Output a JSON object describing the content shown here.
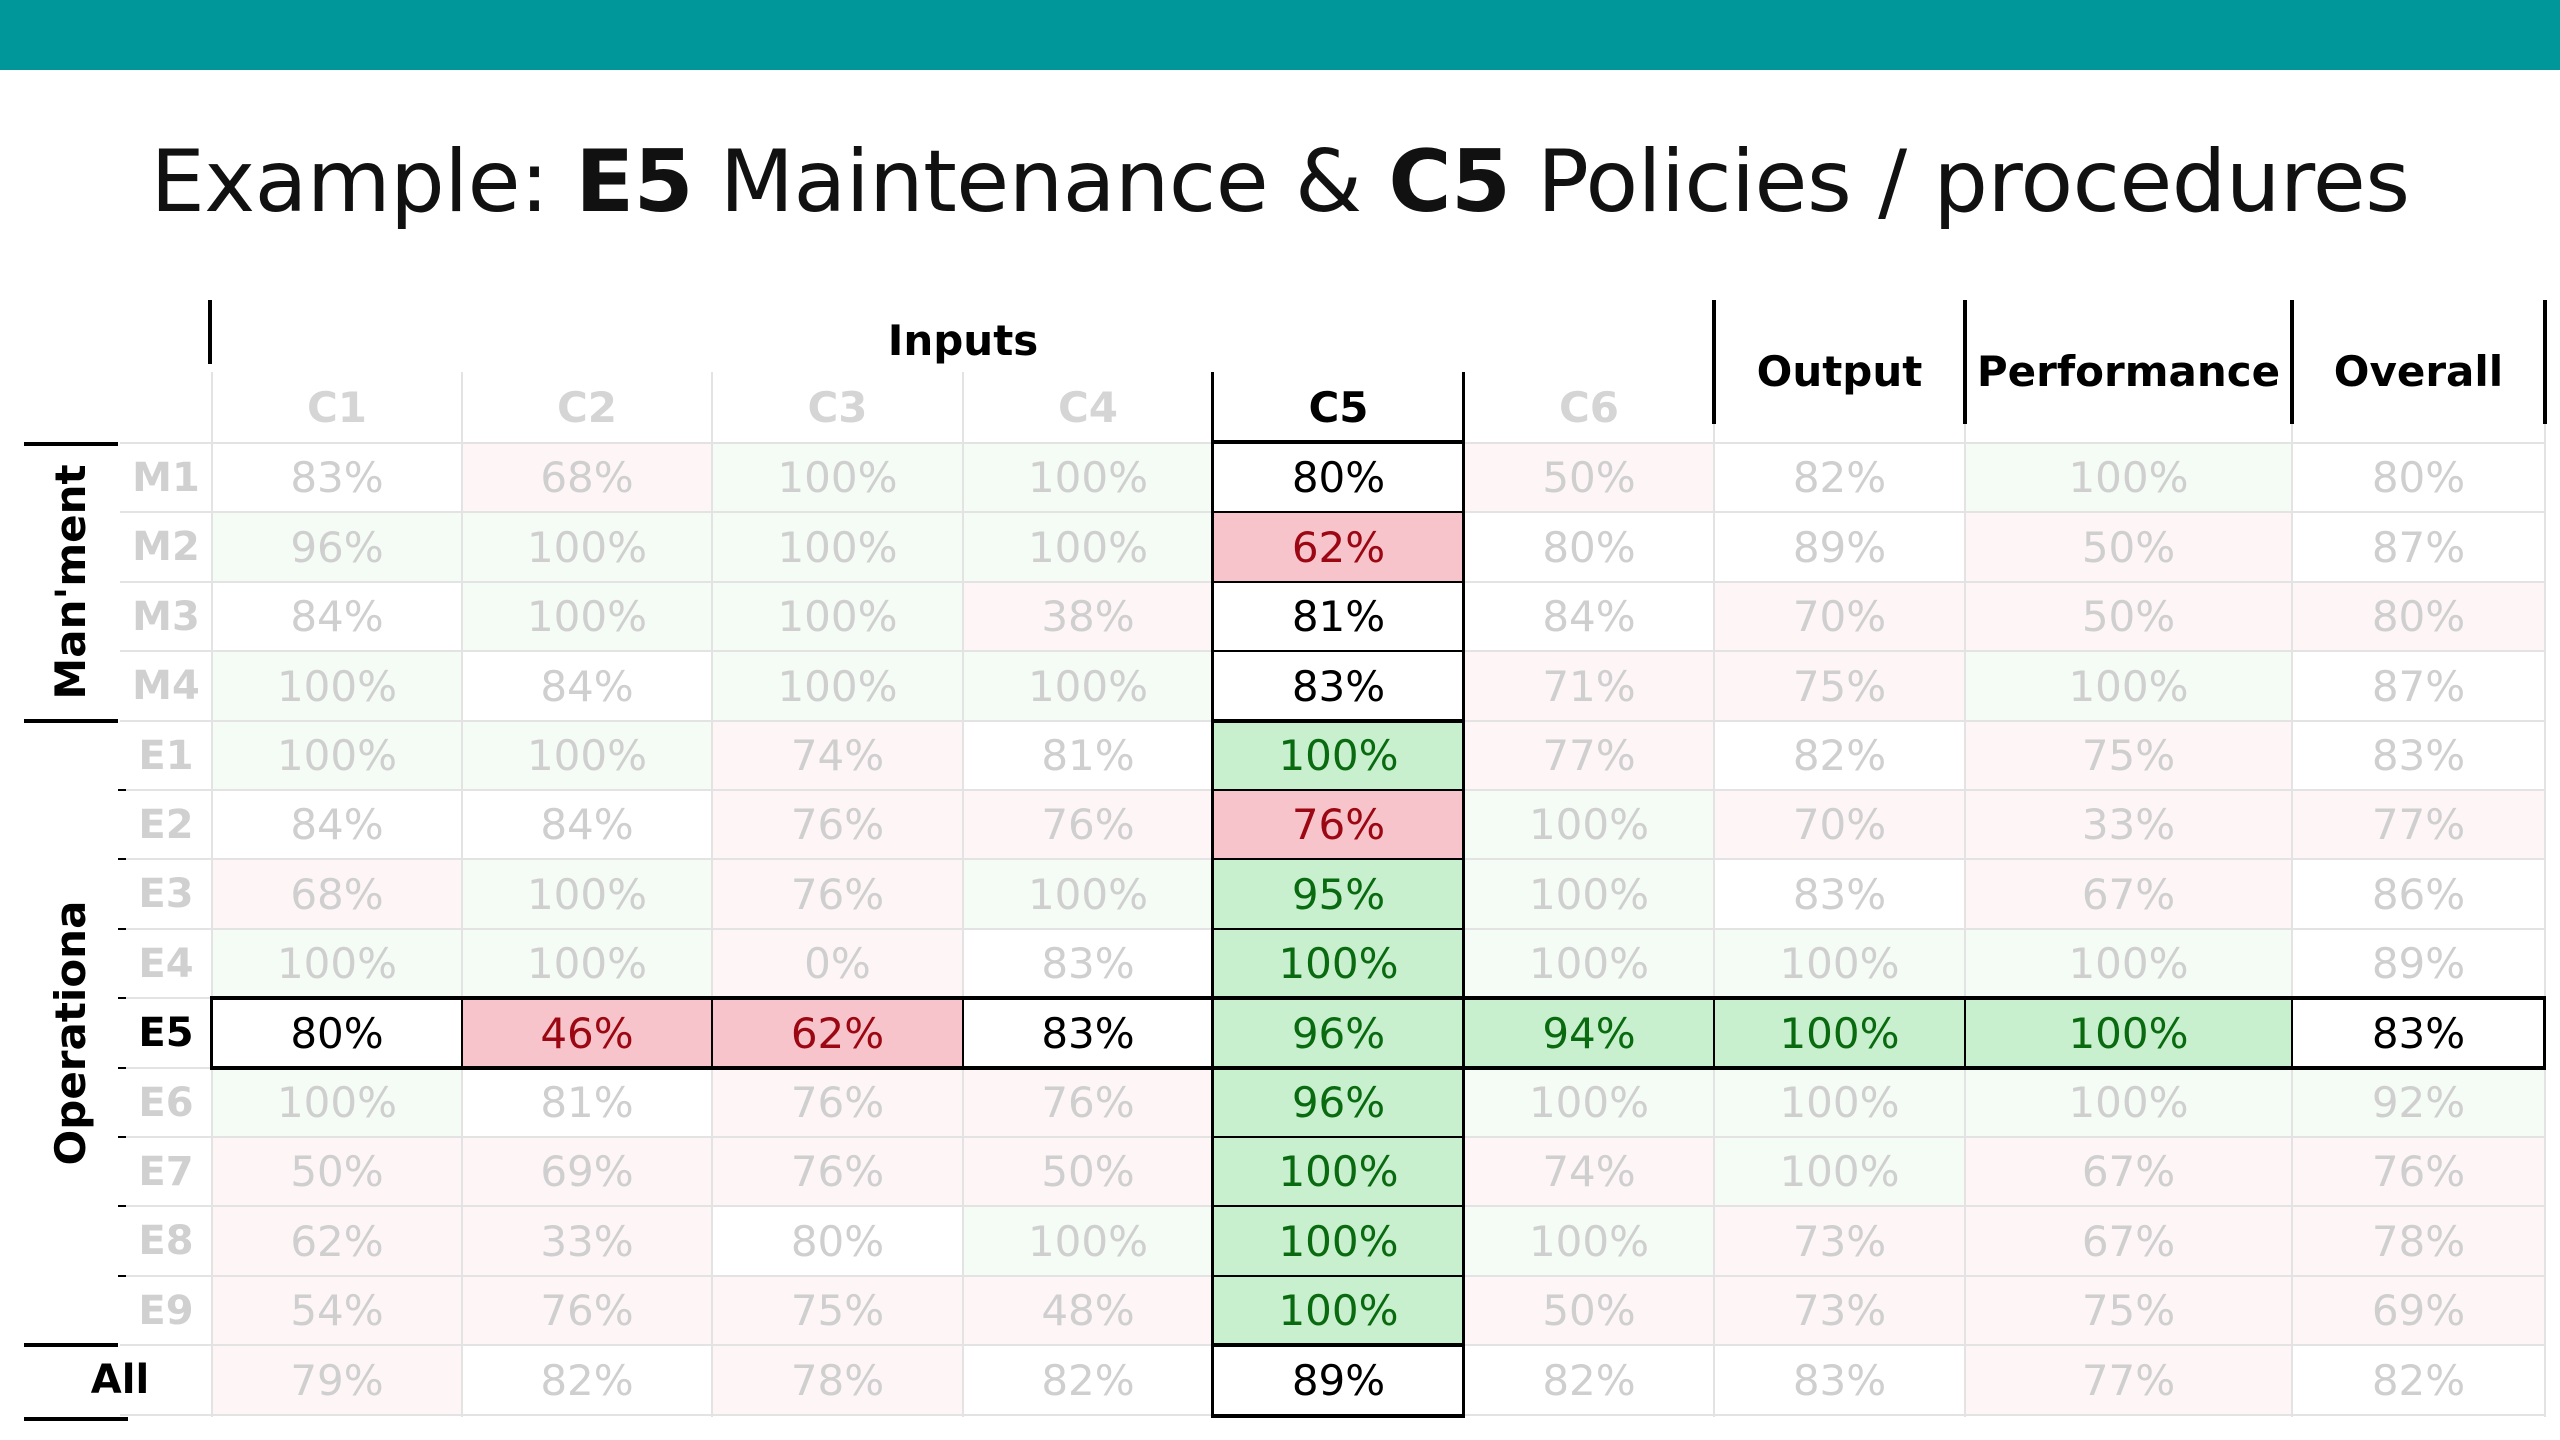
{
  "title": {
    "prefix": "Example: ",
    "e5": "E5",
    "middle": " Maintenance & ",
    "c5": "C5",
    "suffix": " Policies / procedures"
  },
  "headers": {
    "inputs": "Inputs",
    "columns": [
      "C1",
      "C2",
      "C3",
      "C4",
      "C5",
      "C6"
    ],
    "output": "Output",
    "performance": "Performance",
    "overall": "Overall"
  },
  "groups": {
    "management": "Man'ment",
    "operational": "Operationa",
    "all": "All"
  },
  "rows": [
    {
      "label": "M1",
      "values": [
        "83%",
        "68%",
        "100%",
        "100%",
        "80%",
        "50%",
        "82%",
        "100%",
        "80%"
      ],
      "tint": [
        "",
        "r",
        "g",
        "g",
        "",
        "r",
        "",
        "g",
        ""
      ],
      "hl": [
        "",
        "",
        "",
        "",
        "w",
        "",
        "",
        "",
        ""
      ]
    },
    {
      "label": "M2",
      "values": [
        "96%",
        "100%",
        "100%",
        "100%",
        "62%",
        "80%",
        "89%",
        "50%",
        "87%"
      ],
      "tint": [
        "g",
        "g",
        "g",
        "g",
        "",
        "",
        "",
        "r",
        ""
      ],
      "hl": [
        "",
        "",
        "",
        "",
        "r",
        "",
        "",
        "",
        ""
      ]
    },
    {
      "label": "M3",
      "values": [
        "84%",
        "100%",
        "100%",
        "38%",
        "81%",
        "84%",
        "70%",
        "50%",
        "80%"
      ],
      "tint": [
        "",
        "g",
        "g",
        "r",
        "",
        "",
        "r",
        "r",
        "r"
      ],
      "hl": [
        "",
        "",
        "",
        "",
        "w",
        "",
        "",
        "",
        ""
      ]
    },
    {
      "label": "M4",
      "values": [
        "100%",
        "84%",
        "100%",
        "100%",
        "83%",
        "71%",
        "75%",
        "100%",
        "87%"
      ],
      "tint": [
        "g",
        "",
        "g",
        "g",
        "",
        "r",
        "r",
        "g",
        ""
      ],
      "hl": [
        "",
        "",
        "",
        "",
        "w",
        "",
        "",
        "",
        ""
      ]
    },
    {
      "label": "E1",
      "values": [
        "100%",
        "100%",
        "74%",
        "81%",
        "100%",
        "77%",
        "82%",
        "75%",
        "83%"
      ],
      "tint": [
        "g",
        "g",
        "r",
        "",
        "",
        "r",
        "",
        "r",
        ""
      ],
      "hl": [
        "",
        "",
        "",
        "",
        "g",
        "",
        "",
        "",
        ""
      ]
    },
    {
      "label": "E2",
      "values": [
        "84%",
        "84%",
        "76%",
        "76%",
        "76%",
        "100%",
        "70%",
        "33%",
        "77%"
      ],
      "tint": [
        "",
        "",
        "r",
        "r",
        "",
        "g",
        "r",
        "r",
        "r"
      ],
      "hl": [
        "",
        "",
        "",
        "",
        "r",
        "",
        "",
        "",
        ""
      ]
    },
    {
      "label": "E3",
      "values": [
        "68%",
        "100%",
        "76%",
        "100%",
        "95%",
        "100%",
        "83%",
        "67%",
        "86%"
      ],
      "tint": [
        "r",
        "g",
        "r",
        "g",
        "",
        "g",
        "",
        "r",
        ""
      ],
      "hl": [
        "",
        "",
        "",
        "",
        "g",
        "",
        "",
        "",
        ""
      ]
    },
    {
      "label": "E4",
      "values": [
        "100%",
        "100%",
        "0%",
        "83%",
        "100%",
        "100%",
        "100%",
        "100%",
        "89%"
      ],
      "tint": [
        "g",
        "g",
        "r",
        "",
        "",
        "g",
        "g",
        "g",
        ""
      ],
      "hl": [
        "",
        "",
        "",
        "",
        "g",
        "",
        "",
        "",
        ""
      ]
    },
    {
      "label": "E5",
      "values": [
        "80%",
        "46%",
        "62%",
        "83%",
        "96%",
        "94%",
        "100%",
        "100%",
        "83%"
      ],
      "tint": [
        "",
        "",
        "",
        "",
        "",
        "",
        "",
        "",
        ""
      ],
      "hl": [
        "w",
        "r",
        "r",
        "w",
        "g",
        "g",
        "g",
        "g",
        "w"
      ]
    },
    {
      "label": "E6",
      "values": [
        "100%",
        "81%",
        "76%",
        "76%",
        "96%",
        "100%",
        "100%",
        "100%",
        "92%"
      ],
      "tint": [
        "g",
        "",
        "r",
        "r",
        "",
        "g",
        "g",
        "g",
        "g"
      ],
      "hl": [
        "",
        "",
        "",
        "",
        "g",
        "",
        "",
        "",
        ""
      ]
    },
    {
      "label": "E7",
      "values": [
        "50%",
        "69%",
        "76%",
        "50%",
        "100%",
        "74%",
        "100%",
        "67%",
        "76%"
      ],
      "tint": [
        "r",
        "r",
        "r",
        "r",
        "",
        "r",
        "g",
        "r",
        "r"
      ],
      "hl": [
        "",
        "",
        "",
        "",
        "g",
        "",
        "",
        "",
        ""
      ]
    },
    {
      "label": "E8",
      "values": [
        "62%",
        "33%",
        "80%",
        "100%",
        "100%",
        "100%",
        "73%",
        "67%",
        "78%"
      ],
      "tint": [
        "r",
        "r",
        "",
        "g",
        "",
        "g",
        "r",
        "r",
        "r"
      ],
      "hl": [
        "",
        "",
        "",
        "",
        "g",
        "",
        "",
        "",
        ""
      ]
    },
    {
      "label": "E9",
      "values": [
        "54%",
        "76%",
        "75%",
        "48%",
        "100%",
        "50%",
        "73%",
        "75%",
        "69%"
      ],
      "tint": [
        "r",
        "r",
        "r",
        "r",
        "",
        "r",
        "r",
        "r",
        "r"
      ],
      "hl": [
        "",
        "",
        "",
        "",
        "g",
        "",
        "",
        "",
        ""
      ]
    },
    {
      "label": "All",
      "values": [
        "79%",
        "82%",
        "78%",
        "82%",
        "89%",
        "82%",
        "83%",
        "77%",
        "82%"
      ],
      "tint": [
        "r",
        "",
        "r",
        "",
        "",
        "",
        "",
        "r",
        ""
      ],
      "hl": [
        "",
        "",
        "",
        "",
        "w",
        "",
        "",
        "",
        ""
      ]
    }
  ],
  "colors": {
    "topbar": "#00979a",
    "highlight_green": "#c8efce",
    "highlight_red": "#f8c4cb"
  }
}
